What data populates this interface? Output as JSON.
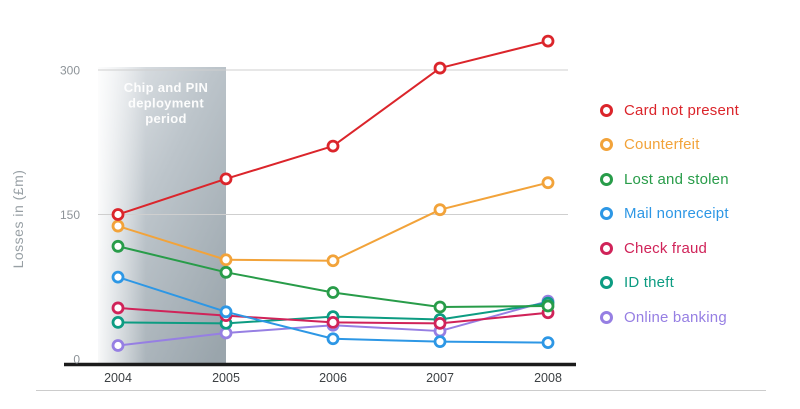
{
  "chart_data": {
    "type": "line",
    "title": "",
    "xlabel": "",
    "ylabel": "Losses in (£m)",
    "x_labels": [
      "2004",
      "2005",
      "2006",
      "2007",
      "2008"
    ],
    "yticks": [
      0,
      150,
      300
    ],
    "ylim": [
      0,
      340
    ],
    "grid": "horizontal",
    "legend_position": "right",
    "annotation": {
      "text": "Chip and PIN deployment period",
      "lines": [
        "Chip and PIN",
        "deployment",
        "period"
      ],
      "x_range": [
        "2004",
        "2005"
      ]
    },
    "series": [
      {
        "id": "card-not-present",
        "name": "Card not present",
        "color": "#DB252B",
        "values": [
          150,
          187,
          221,
          302,
          330
        ]
      },
      {
        "id": "counterfeit",
        "name": "Counterfeit",
        "color": "#F2A33A",
        "values": [
          138,
          103,
          102,
          155,
          183
        ]
      },
      {
        "id": "lost-and-stolen",
        "name": "Lost and stolen",
        "color": "#289C49",
        "values": [
          117,
          90,
          69,
          54,
          55
        ]
      },
      {
        "id": "mail-nonreceipt",
        "name": "Mail nonreceipt",
        "color": "#2D97E5",
        "values": [
          85,
          49,
          21,
          18,
          17
        ]
      },
      {
        "id": "check-fraud",
        "name": "Check fraud",
        "color": "#D02359",
        "values": [
          53,
          45,
          38,
          37,
          48
        ]
      },
      {
        "id": "id-theft",
        "name": "ID theft",
        "color": "#0D9C82",
        "values": [
          38,
          37,
          44,
          41,
          58
        ]
      },
      {
        "id": "online-banking",
        "name": "Online banking",
        "color": "#967FE3",
        "values": [
          14,
          27,
          35,
          29,
          60
        ]
      }
    ],
    "draw_order": [
      "online-banking",
      "id-theft",
      "check-fraud",
      "mail-nonreceipt",
      "lost-and-stolen",
      "counterfeit",
      "card-not-present"
    ]
  }
}
